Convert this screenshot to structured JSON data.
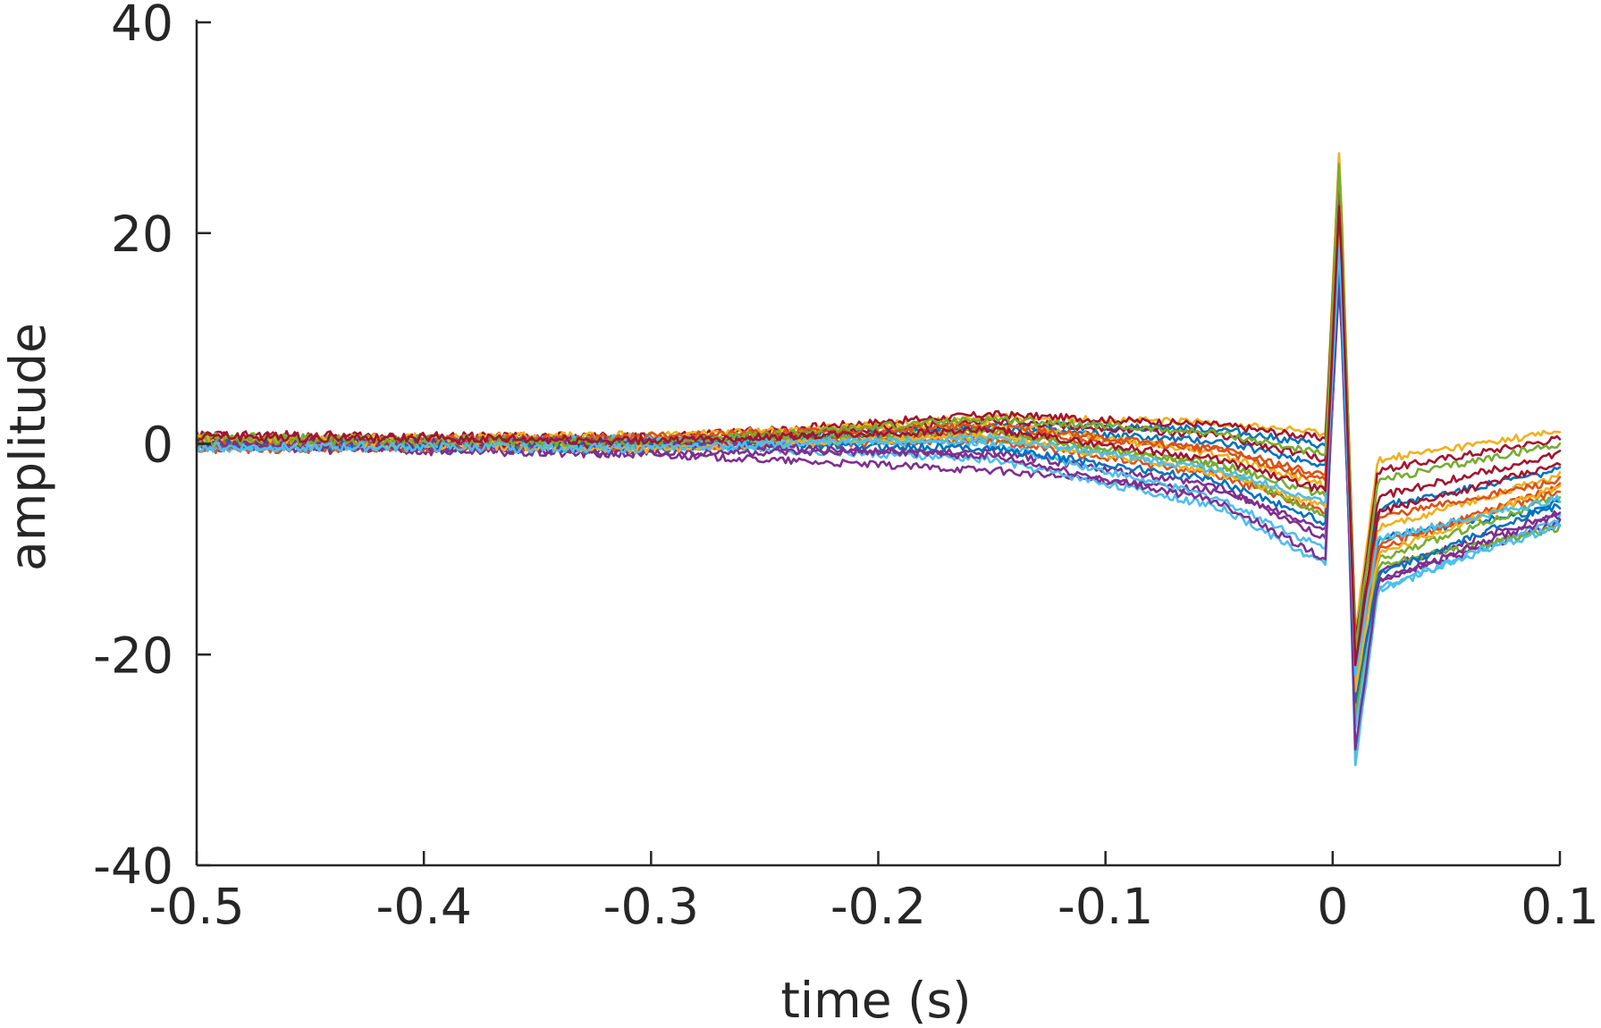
{
  "chart_data": {
    "type": "line",
    "title": "",
    "xlabel": "time (s)",
    "ylabel": "amplitude",
    "xlim": [
      -0.5,
      0.1
    ],
    "ylim": [
      -40,
      40
    ],
    "xticks": [
      -0.5,
      -0.4,
      -0.3,
      -0.2,
      -0.1,
      0,
      0.1
    ],
    "xtick_labels": [
      "-0.5",
      "-0.4",
      "-0.3",
      "-0.2",
      "-0.1",
      "0",
      "0.1"
    ],
    "yticks": [
      -40,
      -20,
      0,
      20,
      40
    ],
    "ytick_labels": [
      "-40",
      "-20",
      "0",
      "20",
      "40"
    ],
    "grid": false,
    "legend": "none",
    "colors": [
      "#0072BD",
      "#D95319",
      "#EDB120",
      "#7E2F8E",
      "#77AC30",
      "#4DBEEE",
      "#A2142F"
    ],
    "x_breakpoints": [
      -0.5,
      -0.3,
      -0.15,
      -0.05,
      -0.003,
      0.003,
      0.01,
      0.02,
      0.1
    ],
    "series": [
      {
        "values": [
          0.0,
          -0.6,
          1.8,
          1.4,
          -0.2,
          18.0,
          -20.0,
          -9.0,
          -6.0
        ]
      },
      {
        "values": [
          0.5,
          -0.2,
          1.0,
          -0.5,
          -3.0,
          22.0,
          -22.0,
          -10.0,
          -4.0
        ]
      },
      {
        "values": [
          0.2,
          0.3,
          2.6,
          2.0,
          1.0,
          28.5,
          -18.0,
          -1.5,
          1.2
        ]
      },
      {
        "values": [
          -0.3,
          -1.0,
          -2.5,
          -4.5,
          -8.0,
          16.0,
          -24.0,
          -13.0,
          -7.5
        ]
      },
      {
        "values": [
          0.4,
          0.1,
          0.5,
          -1.8,
          -5.0,
          20.0,
          -21.0,
          -11.0,
          -5.0
        ]
      },
      {
        "values": [
          -0.2,
          0.0,
          -1.5,
          -6.0,
          -11.5,
          24.0,
          -30.5,
          -14.0,
          -7.0
        ]
      },
      {
        "values": [
          0.8,
          0.6,
          2.8,
          1.8,
          0.5,
          27.0,
          -19.0,
          -2.5,
          0.5
        ]
      },
      {
        "values": [
          0.1,
          0.4,
          1.5,
          0.2,
          -2.0,
          21.0,
          -20.5,
          -6.0,
          -2.5
        ]
      },
      {
        "values": [
          -0.5,
          -0.3,
          0.3,
          -3.0,
          -6.5,
          19.0,
          -23.0,
          -9.5,
          -4.5
        ]
      },
      {
        "values": [
          0.3,
          0.8,
          2.0,
          -1.0,
          -4.0,
          23.0,
          -22.5,
          -8.0,
          -3.0
        ]
      },
      {
        "values": [
          0.0,
          -0.8,
          -0.8,
          -4.0,
          -9.0,
          17.0,
          -25.0,
          -12.0,
          -6.5
        ]
      },
      {
        "values": [
          0.6,
          0.2,
          1.2,
          -2.2,
          -7.0,
          25.0,
          -26.0,
          -11.5,
          -8.0
        ]
      },
      {
        "values": [
          -0.4,
          0.5,
          0.0,
          -5.2,
          -10.0,
          20.5,
          -27.0,
          -13.5,
          -7.8
        ]
      },
      {
        "values": [
          0.2,
          -0.1,
          2.2,
          0.8,
          -1.5,
          26.0,
          -18.5,
          -5.0,
          -1.0
        ]
      },
      {
        "values": [
          0.1,
          0.0,
          -0.4,
          -3.5,
          -7.5,
          18.5,
          -24.5,
          -12.5,
          -5.5
        ]
      },
      {
        "values": [
          -0.1,
          0.7,
          1.7,
          -0.6,
          -3.5,
          22.5,
          -21.5,
          -7.0,
          -3.5
        ]
      },
      {
        "values": [
          0.5,
          -0.5,
          0.8,
          -2.8,
          -6.0,
          21.5,
          -23.5,
          -10.5,
          -4.0
        ]
      },
      {
        "values": [
          0.0,
          0.2,
          -1.2,
          -5.5,
          -11.0,
          24.5,
          -29.0,
          -13.0,
          -6.8
        ]
      },
      {
        "values": [
          0.3,
          0.1,
          2.4,
          1.0,
          -1.0,
          27.5,
          -19.5,
          -3.5,
          0.0
        ]
      },
      {
        "values": [
          -0.3,
          -0.4,
          0.6,
          -2.5,
          -5.5,
          19.5,
          -22.0,
          -9.0,
          -5.2
        ]
      },
      {
        "values": [
          0.7,
          0.3,
          1.3,
          -1.5,
          -4.5,
          23.5,
          -21.0,
          -6.5,
          -2.0
        ]
      }
    ]
  }
}
